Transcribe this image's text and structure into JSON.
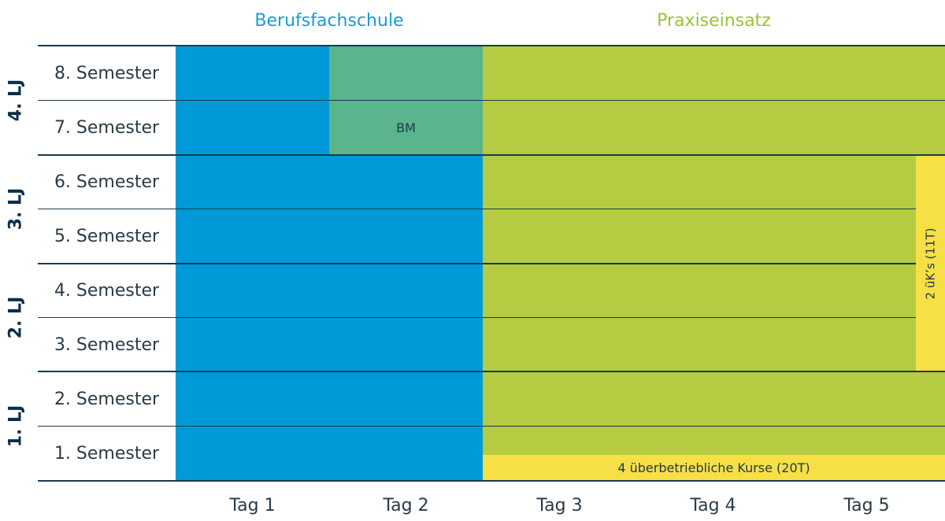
{
  "colors": {
    "school_blue": "#009ad9",
    "bm_green": "#5ab48c",
    "praxis_green": "#b5cb41",
    "kurs_yellow": "#f7df46",
    "dark_line": "#1b3a4e",
    "text_dark": "#2a3a47",
    "header_school": "#1a9bd7",
    "header_praxis": "#9cc337"
  },
  "headers": {
    "school": "Berufsfachschule",
    "praxis": "Praxiseinsatz"
  },
  "lehrjahre": [
    "4. LJ",
    "3. LJ",
    "2. LJ",
    "1. LJ"
  ],
  "semesters": [
    "8. Semester",
    "7. Semester",
    "6. Semester",
    "5. Semester",
    "4. Semester",
    "3. Semester",
    "2. Semester",
    "1. Semester"
  ],
  "days": [
    "Tag 1",
    "Tag 2",
    "Tag 3",
    "Tag 4",
    "Tag 5"
  ],
  "blocks": {
    "bm": "BM",
    "kurse": "4 überbetriebliche Kurse (20T)",
    "uk": "2 üK’s  (11T)"
  }
}
